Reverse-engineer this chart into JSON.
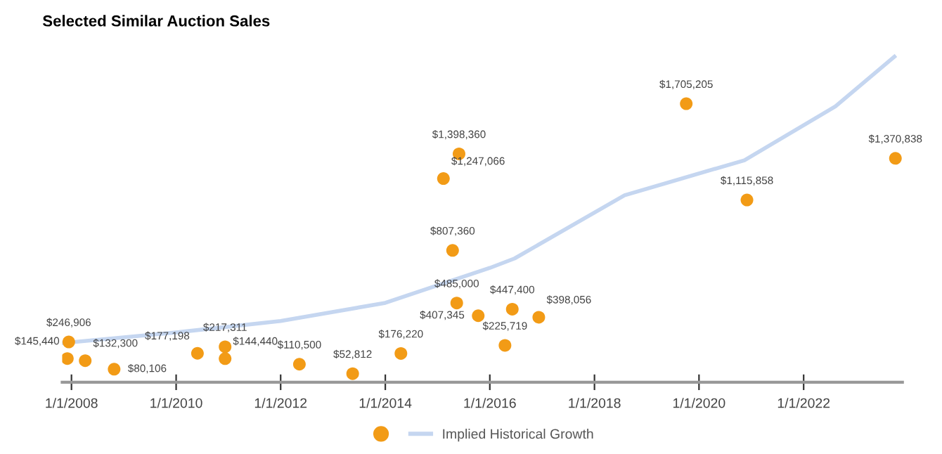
{
  "chart_data": {
    "type": "scatter",
    "title": "Selected Similar Auction Sales",
    "xlim": [
      "2007-10-28",
      "2023-11-22"
    ],
    "xticks": [
      {
        "value": "2008-01-01",
        "label": "1/1/2008"
      },
      {
        "value": "2010-01-01",
        "label": "1/1/2010"
      },
      {
        "value": "2012-01-01",
        "label": "1/1/2012"
      },
      {
        "value": "2014-01-01",
        "label": "1/1/2014"
      },
      {
        "value": "2016-01-01",
        "label": "1/1/2016"
      },
      {
        "value": "2018-01-01",
        "label": "1/1/2018"
      },
      {
        "value": "2020-01-01",
        "label": "1/1/2020"
      },
      {
        "value": "2022-01-01",
        "label": "1/1/2022"
      }
    ],
    "tick_labels": "x",
    "grid": false,
    "legend": "bottom",
    "series": [
      {
        "color": "#f29b16",
        "marker": "circle",
        "x": [
          "2007-12-03",
          "2007-12-13",
          "2008-04-06",
          "2008-10-25",
          "2010-05-30",
          "2010-12-09",
          "2010-12-09",
          "2012-05-11",
          "2013-05-18",
          "2014-04-20",
          "2015-02-11",
          "2015-04-16",
          "2015-05-15",
          "2015-05-31",
          "2015-10-12",
          "2016-04-16",
          "2016-06-06",
          "2016-12-08",
          "2019-10-04",
          "2020-12-01",
          "2023-10-04"
        ],
        "values": [
          145440,
          246906,
          132300,
          80106,
          177198,
          217311,
          144440,
          110500,
          52812,
          176220,
          1247066,
          807360,
          485000,
          1398360,
          407345,
          225719,
          447400,
          398056,
          1705205,
          1115858,
          1370838
        ],
        "value_labels": [
          "$145,440",
          "$246,906",
          "$132,300",
          "$80,106",
          "$177,198",
          "$217,311",
          "$144,440",
          "$110,500",
          "$52,812",
          "$176,220",
          "$1,247,066",
          "$807,360",
          "$485,000",
          "$1,398,360",
          "$407,345",
          "$225,719",
          "$447,400",
          "$398,056",
          "$1,705,205",
          "$1,115,858",
          "$1,370,838"
        ]
      },
      {
        "type": "line",
        "name": "Implied Historical Growth",
        "color": "#c5d6f0",
        "x": [
          "2007-10-28",
          "2010-01-01",
          "2012-01-01",
          "2014-01-01",
          "2016-01-01",
          "2016-06-22",
          "2018-07-30",
          "2020-11-13",
          "2022-08-11",
          "2023-09-27"
        ],
        "values": [
          240000,
          305000,
          375000,
          486000,
          700000,
          758000,
          1145000,
          1359000,
          1689000,
          1993000
        ]
      }
    ]
  }
}
